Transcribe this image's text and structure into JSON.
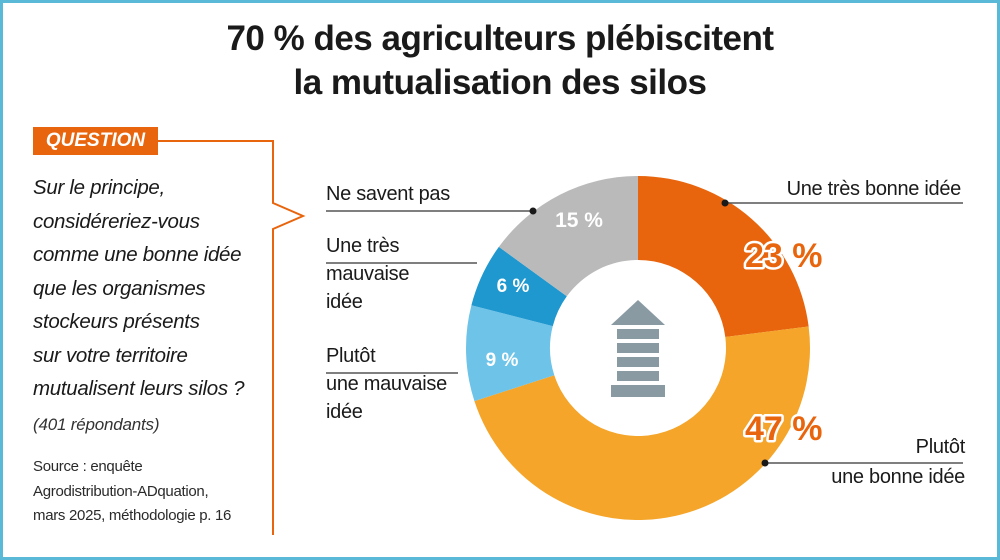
{
  "title": {
    "line1": "70 % des agriculteurs plébiscitent",
    "line2": "la mutualisation des silos"
  },
  "question": {
    "tag": "QUESTION",
    "lines": [
      "Sur le principe,",
      "considéreriez-vous",
      "comme une bonne idée",
      "que les organismes",
      "stockeurs présents",
      "sur votre territoire",
      "mutualisent leurs silos ?"
    ],
    "respondents": "(401 répondants)"
  },
  "source": {
    "lines": [
      "Source : enquête",
      "Agrodistribution-ADquation,",
      "mars 2025, méthodologie p. 16"
    ]
  },
  "icon": {
    "center": "silo-icon"
  },
  "chart_data": {
    "type": "pie",
    "donut": true,
    "unit": "%",
    "slices": [
      {
        "label": "Une très bonne idée",
        "value": 23,
        "display": "23 %",
        "color": "#e8650d"
      },
      {
        "label": "Plutôt une bonne idée",
        "value": 47,
        "display": "47 %",
        "color": "#f4a52a"
      },
      {
        "label": "Plutôt une mauvaise idée",
        "value": 9,
        "display": "9 %",
        "color": "#6ec3e8"
      },
      {
        "label": "Une très mauvaise idée",
        "value": 6,
        "display": "6 %",
        "color": "#1f97cf"
      },
      {
        "label": "Ne savent pas",
        "value": 15,
        "display": "15 %",
        "color": "#bababa"
      }
    ],
    "label_lines": {
      "Une très bonne idée": [
        "Une très bonne idée"
      ],
      "Plutôt une bonne idée": [
        "Plutôt",
        "une bonne idée"
      ],
      "Plutôt une mauvaise idée": [
        "Plutôt",
        "une mauvaise",
        "idée"
      ],
      "Une très mauvaise idée": [
        "Une très",
        "mauvaise",
        "idée"
      ],
      "Ne savent pas": [
        "Ne savent pas"
      ]
    }
  }
}
